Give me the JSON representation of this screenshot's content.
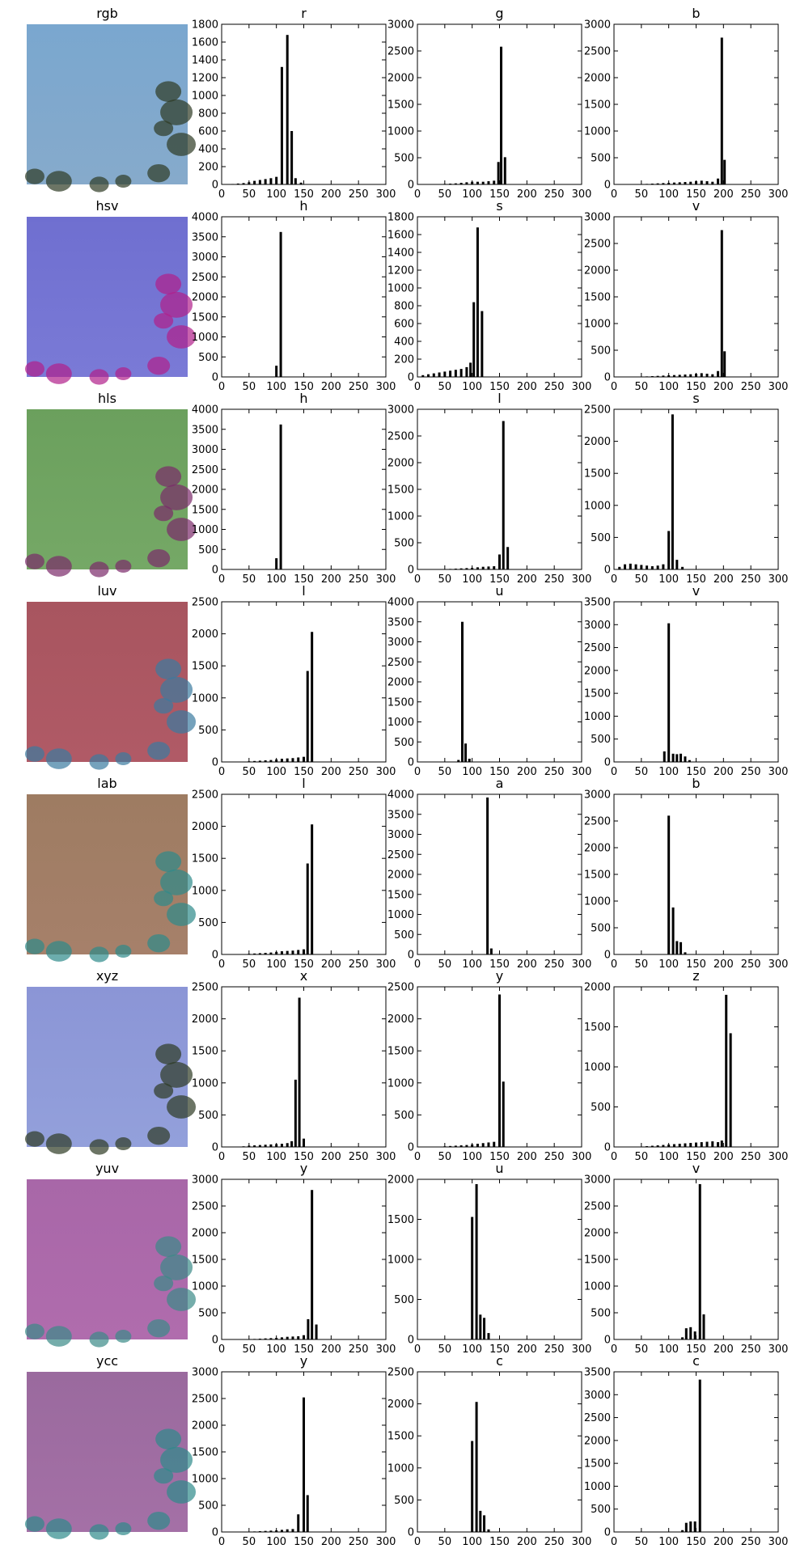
{
  "chart_data": [
    {
      "type": "image",
      "title": "rgb",
      "colors": {
        "top": "#7aa7cf",
        "bottom": "#86aacb",
        "accent": "#2e3a24"
      }
    },
    {
      "type": "bar",
      "title": "r",
      "ylim": [
        0,
        1800
      ],
      "yticks": [
        0,
        200,
        400,
        600,
        800,
        1000,
        1200,
        1400,
        1600,
        1800
      ],
      "xlim": [
        0,
        300
      ],
      "xticks": [
        0,
        50,
        100,
        150,
        200,
        250,
        300
      ],
      "x": [
        20,
        30,
        40,
        50,
        60,
        70,
        80,
        90,
        100,
        110,
        120,
        128,
        135,
        145
      ],
      "values": [
        5,
        10,
        15,
        25,
        40,
        50,
        60,
        70,
        85,
        1320,
        1680,
        600,
        70,
        20
      ]
    },
    {
      "type": "bar",
      "title": "g",
      "ylim": [
        0,
        3000
      ],
      "yticks": [
        0,
        500,
        1000,
        1500,
        2000,
        2500,
        3000
      ],
      "xlim": [
        0,
        300
      ],
      "xticks": [
        0,
        50,
        100,
        150,
        200,
        250,
        300
      ],
      "x": [
        40,
        50,
        60,
        70,
        80,
        90,
        100,
        110,
        120,
        130,
        140,
        148,
        153,
        160
      ],
      "values": [
        5,
        10,
        15,
        20,
        30,
        40,
        50,
        50,
        50,
        60,
        70,
        420,
        2580,
        510
      ]
    },
    {
      "type": "bar",
      "title": "b",
      "ylim": [
        0,
        3000
      ],
      "yticks": [
        0,
        500,
        1000,
        1500,
        2000,
        2500,
        3000
      ],
      "xlim": [
        0,
        300
      ],
      "xticks": [
        0,
        50,
        100,
        150,
        200,
        250,
        300
      ],
      "x": [
        50,
        60,
        70,
        80,
        90,
        100,
        110,
        120,
        130,
        140,
        150,
        160,
        170,
        180,
        190,
        197,
        202
      ],
      "values": [
        5,
        10,
        15,
        20,
        25,
        30,
        35,
        40,
        45,
        50,
        60,
        70,
        60,
        50,
        110,
        2750,
        460
      ]
    },
    {
      "type": "image",
      "title": "hsv",
      "colors": {
        "top": "#6f6fd0",
        "bottom": "#7a7ad6",
        "accent": "#b0208a"
      }
    },
    {
      "type": "bar",
      "title": "h",
      "ylim": [
        0,
        4000
      ],
      "yticks": [
        0,
        500,
        1000,
        1500,
        2000,
        2500,
        3000,
        3500,
        4000
      ],
      "xlim": [
        0,
        300
      ],
      "xticks": [
        0,
        50,
        100,
        150,
        200,
        250,
        300
      ],
      "x": [
        100,
        108
      ],
      "values": [
        280,
        3620
      ]
    },
    {
      "type": "bar",
      "title": "s",
      "ylim": [
        0,
        1800
      ],
      "yticks": [
        0,
        200,
        400,
        600,
        800,
        1000,
        1200,
        1400,
        1600,
        1800
      ],
      "xlim": [
        0,
        300
      ],
      "xticks": [
        0,
        50,
        100,
        150,
        200,
        250,
        300
      ],
      "x": [
        10,
        20,
        30,
        40,
        50,
        60,
        70,
        80,
        90,
        97,
        103,
        110,
        118
      ],
      "values": [
        20,
        30,
        40,
        50,
        60,
        70,
        80,
        90,
        110,
        160,
        840,
        1680,
        740
      ]
    },
    {
      "type": "bar",
      "title": "v",
      "ylim": [
        0,
        3000
      ],
      "yticks": [
        0,
        500,
        1000,
        1500,
        2000,
        2500,
        3000
      ],
      "xlim": [
        0,
        300
      ],
      "xticks": [
        0,
        50,
        100,
        150,
        200,
        250,
        300
      ],
      "x": [
        50,
        60,
        70,
        80,
        90,
        100,
        110,
        120,
        130,
        140,
        150,
        160,
        170,
        180,
        190,
        197,
        202
      ],
      "values": [
        5,
        10,
        15,
        20,
        25,
        30,
        35,
        40,
        45,
        50,
        60,
        70,
        60,
        50,
        110,
        2750,
        480
      ]
    },
    {
      "type": "image",
      "title": "hls",
      "colors": {
        "top": "#6ba05d",
        "bottom": "#75a866",
        "accent": "#7a2a6a"
      }
    },
    {
      "type": "bar",
      "title": "h",
      "ylim": [
        0,
        4000
      ],
      "yticks": [
        0,
        500,
        1000,
        1500,
        2000,
        2500,
        3000,
        3500,
        4000
      ],
      "xlim": [
        0,
        300
      ],
      "xticks": [
        0,
        50,
        100,
        150,
        200,
        250,
        300
      ],
      "x": [
        100,
        108
      ],
      "values": [
        280,
        3620
      ]
    },
    {
      "type": "bar",
      "title": "l",
      "ylim": [
        0,
        3000
      ],
      "yticks": [
        0,
        500,
        1000,
        1500,
        2000,
        2500,
        3000
      ],
      "xlim": [
        0,
        300
      ],
      "xticks": [
        0,
        50,
        100,
        150,
        200,
        250,
        300
      ],
      "x": [
        50,
        60,
        70,
        80,
        90,
        100,
        110,
        120,
        130,
        140,
        150,
        157,
        165
      ],
      "values": [
        5,
        10,
        15,
        20,
        25,
        30,
        40,
        50,
        55,
        60,
        280,
        2780,
        420
      ]
    },
    {
      "type": "bar",
      "title": "s",
      "ylim": [
        0,
        2500
      ],
      "yticks": [
        0,
        500,
        1000,
        1500,
        2000,
        2500
      ],
      "xlim": [
        0,
        300
      ],
      "xticks": [
        0,
        50,
        100,
        150,
        200,
        250,
        300
      ],
      "x": [
        10,
        20,
        30,
        40,
        50,
        60,
        70,
        80,
        90,
        100,
        107,
        115,
        125
      ],
      "values": [
        40,
        80,
        90,
        80,
        70,
        60,
        50,
        60,
        80,
        600,
        2420,
        150,
        40
      ]
    },
    {
      "type": "image",
      "title": "luv",
      "colors": {
        "top": "#a8555f",
        "bottom": "#b05a66",
        "accent": "#3a7aa0"
      }
    },
    {
      "type": "bar",
      "title": "l",
      "ylim": [
        0,
        2500
      ],
      "yticks": [
        0,
        500,
        1000,
        1500,
        2000,
        2500
      ],
      "xlim": [
        0,
        300
      ],
      "xticks": [
        0,
        50,
        100,
        150,
        200,
        250,
        300
      ],
      "x": [
        40,
        50,
        60,
        70,
        80,
        90,
        100,
        110,
        120,
        130,
        140,
        150,
        157,
        165
      ],
      "values": [
        5,
        10,
        15,
        20,
        25,
        30,
        40,
        50,
        55,
        60,
        70,
        80,
        1420,
        2030
      ]
    },
    {
      "type": "bar",
      "title": "u",
      "ylim": [
        0,
        4000
      ],
      "yticks": [
        0,
        500,
        1000,
        1500,
        2000,
        2500,
        3000,
        3500,
        4000
      ],
      "xlim": [
        0,
        300
      ],
      "xticks": [
        0,
        50,
        100,
        150,
        200,
        250,
        300
      ],
      "x": [
        75,
        82,
        88,
        95
      ],
      "values": [
        50,
        3500,
        460,
        80
      ]
    },
    {
      "type": "bar",
      "title": "v",
      "ylim": [
        0,
        3500
      ],
      "yticks": [
        0,
        500,
        1000,
        1500,
        2000,
        2500,
        3000,
        3500
      ],
      "xlim": [
        0,
        300
      ],
      "xticks": [
        0,
        50,
        100,
        150,
        200,
        250,
        300
      ],
      "x": [
        92,
        100,
        108,
        115,
        122,
        130,
        138
      ],
      "values": [
        230,
        3030,
        180,
        170,
        180,
        120,
        40
      ]
    },
    {
      "type": "image",
      "title": "lab",
      "colors": {
        "top": "#9e7c62",
        "bottom": "#a6806a",
        "accent": "#2e8a8a"
      }
    },
    {
      "type": "bar",
      "title": "l",
      "ylim": [
        0,
        2500
      ],
      "yticks": [
        0,
        500,
        1000,
        1500,
        2000,
        2500
      ],
      "xlim": [
        0,
        300
      ],
      "xticks": [
        0,
        50,
        100,
        150,
        200,
        250,
        300
      ],
      "x": [
        40,
        50,
        60,
        70,
        80,
        90,
        100,
        110,
        120,
        130,
        140,
        150,
        157,
        165
      ],
      "values": [
        5,
        10,
        15,
        20,
        25,
        30,
        40,
        50,
        55,
        60,
        70,
        80,
        1420,
        2030
      ]
    },
    {
      "type": "bar",
      "title": "a",
      "ylim": [
        0,
        4000
      ],
      "yticks": [
        0,
        500,
        1000,
        1500,
        2000,
        2500,
        3000,
        3500,
        4000
      ],
      "xlim": [
        0,
        300
      ],
      "xticks": [
        0,
        50,
        100,
        150,
        200,
        250,
        300
      ],
      "x": [
        128,
        135
      ],
      "values": [
        3920,
        150
      ]
    },
    {
      "type": "bar",
      "title": "b",
      "ylim": [
        0,
        3000
      ],
      "yticks": [
        0,
        500,
        1000,
        1500,
        2000,
        2500,
        3000
      ],
      "xlim": [
        0,
        300
      ],
      "xticks": [
        0,
        50,
        100,
        150,
        200,
        250,
        300
      ],
      "x": [
        100,
        108,
        115,
        122,
        130
      ],
      "values": [
        2600,
        880,
        250,
        230,
        40
      ]
    },
    {
      "type": "image",
      "title": "xyz",
      "colors": {
        "top": "#8b95d6",
        "bottom": "#93a0db",
        "accent": "#2e3a24"
      }
    },
    {
      "type": "bar",
      "title": "x",
      "ylim": [
        0,
        2500
      ],
      "yticks": [
        0,
        500,
        1000,
        1500,
        2000,
        2500
      ],
      "xlim": [
        0,
        300
      ],
      "xticks": [
        0,
        50,
        100,
        150,
        200,
        250,
        300
      ],
      "x": [
        30,
        40,
        50,
        60,
        70,
        80,
        90,
        100,
        110,
        120,
        128,
        135,
        142,
        150
      ],
      "values": [
        5,
        10,
        20,
        25,
        30,
        35,
        40,
        45,
        50,
        60,
        90,
        1050,
        2330,
        130
      ]
    },
    {
      "type": "bar",
      "title": "y",
      "ylim": [
        0,
        2500
      ],
      "yticks": [
        0,
        500,
        1000,
        1500,
        2000,
        2500
      ],
      "xlim": [
        0,
        300
      ],
      "xticks": [
        0,
        50,
        100,
        150,
        200,
        250,
        300
      ],
      "x": [
        40,
        50,
        60,
        70,
        80,
        90,
        100,
        110,
        120,
        130,
        140,
        150,
        157
      ],
      "values": [
        5,
        10,
        15,
        20,
        25,
        30,
        40,
        50,
        60,
        70,
        80,
        2380,
        1020
      ]
    },
    {
      "type": "bar",
      "title": "z",
      "ylim": [
        0,
        2000
      ],
      "yticks": [
        0,
        500,
        1000,
        1500,
        2000
      ],
      "xlim": [
        0,
        300
      ],
      "xticks": [
        0,
        50,
        100,
        150,
        200,
        250,
        300
      ],
      "x": [
        50,
        60,
        70,
        80,
        90,
        100,
        110,
        120,
        130,
        140,
        150,
        160,
        170,
        180,
        190,
        197,
        205,
        213
      ],
      "values": [
        5,
        10,
        15,
        20,
        25,
        30,
        35,
        40,
        45,
        50,
        55,
        60,
        65,
        70,
        60,
        80,
        1900,
        1420
      ]
    },
    {
      "type": "image",
      "title": "yuv",
      "colors": {
        "top": "#a867a8",
        "bottom": "#b06cad",
        "accent": "#3a8a88"
      }
    },
    {
      "type": "bar",
      "title": "y",
      "ylim": [
        0,
        3000
      ],
      "yticks": [
        0,
        500,
        1000,
        1500,
        2000,
        2500,
        3000
      ],
      "xlim": [
        0,
        300
      ],
      "xticks": [
        0,
        50,
        100,
        150,
        200,
        250,
        300
      ],
      "x": [
        50,
        60,
        70,
        80,
        90,
        100,
        110,
        120,
        130,
        140,
        150,
        158,
        165,
        173
      ],
      "values": [
        5,
        10,
        15,
        20,
        25,
        30,
        40,
        50,
        55,
        60,
        80,
        380,
        2800,
        280
      ]
    },
    {
      "type": "bar",
      "title": "u",
      "ylim": [
        0,
        2000
      ],
      "yticks": [
        0,
        500,
        1000,
        1500,
        2000
      ],
      "xlim": [
        0,
        300
      ],
      "xticks": [
        0,
        50,
        100,
        150,
        200,
        250,
        300
      ],
      "x": [
        100,
        108,
        115,
        122,
        130
      ],
      "values": [
        1530,
        1940,
        310,
        270,
        80
      ]
    },
    {
      "type": "bar",
      "title": "v",
      "ylim": [
        0,
        3000
      ],
      "yticks": [
        0,
        500,
        1000,
        1500,
        2000,
        2500,
        3000
      ],
      "xlim": [
        0,
        300
      ],
      "xticks": [
        0,
        50,
        100,
        150,
        200,
        250,
        300
      ],
      "x": [
        125,
        132,
        140,
        148,
        157,
        164
      ],
      "values": [
        40,
        210,
        230,
        150,
        2910,
        470
      ]
    },
    {
      "type": "image",
      "title": "ycc",
      "colors": {
        "top": "#9a6a9e",
        "bottom": "#a470a6",
        "accent": "#2e8a8a"
      }
    },
    {
      "type": "bar",
      "title": "y",
      "ylim": [
        0,
        3000
      ],
      "yticks": [
        0,
        500,
        1000,
        1500,
        2000,
        2500,
        3000
      ],
      "xlim": [
        0,
        300
      ],
      "xticks": [
        0,
        50,
        100,
        150,
        200,
        250,
        300
      ],
      "x": [
        50,
        60,
        70,
        80,
        90,
        100,
        110,
        120,
        130,
        140,
        150,
        157
      ],
      "values": [
        5,
        10,
        15,
        20,
        25,
        30,
        40,
        50,
        55,
        330,
        2520,
        690
      ]
    },
    {
      "type": "bar",
      "title": "c",
      "ylim": [
        0,
        2500
      ],
      "yticks": [
        0,
        500,
        1000,
        1500,
        2000,
        2500
      ],
      "xlim": [
        0,
        300
      ],
      "xticks": [
        0,
        50,
        100,
        150,
        200,
        250,
        300
      ],
      "x": [
        100,
        108,
        115,
        122,
        130
      ],
      "values": [
        1420,
        2030,
        330,
        260,
        40
      ]
    },
    {
      "type": "bar",
      "title": "c",
      "ylim": [
        0,
        3500
      ],
      "yticks": [
        0,
        500,
        1000,
        1500,
        2000,
        2500,
        3000,
        3500
      ],
      "xlim": [
        0,
        300
      ],
      "xticks": [
        0,
        50,
        100,
        150,
        200,
        250,
        300
      ],
      "x": [
        125,
        132,
        140,
        148,
        157
      ],
      "values": [
        40,
        200,
        230,
        230,
        3330
      ]
    }
  ]
}
